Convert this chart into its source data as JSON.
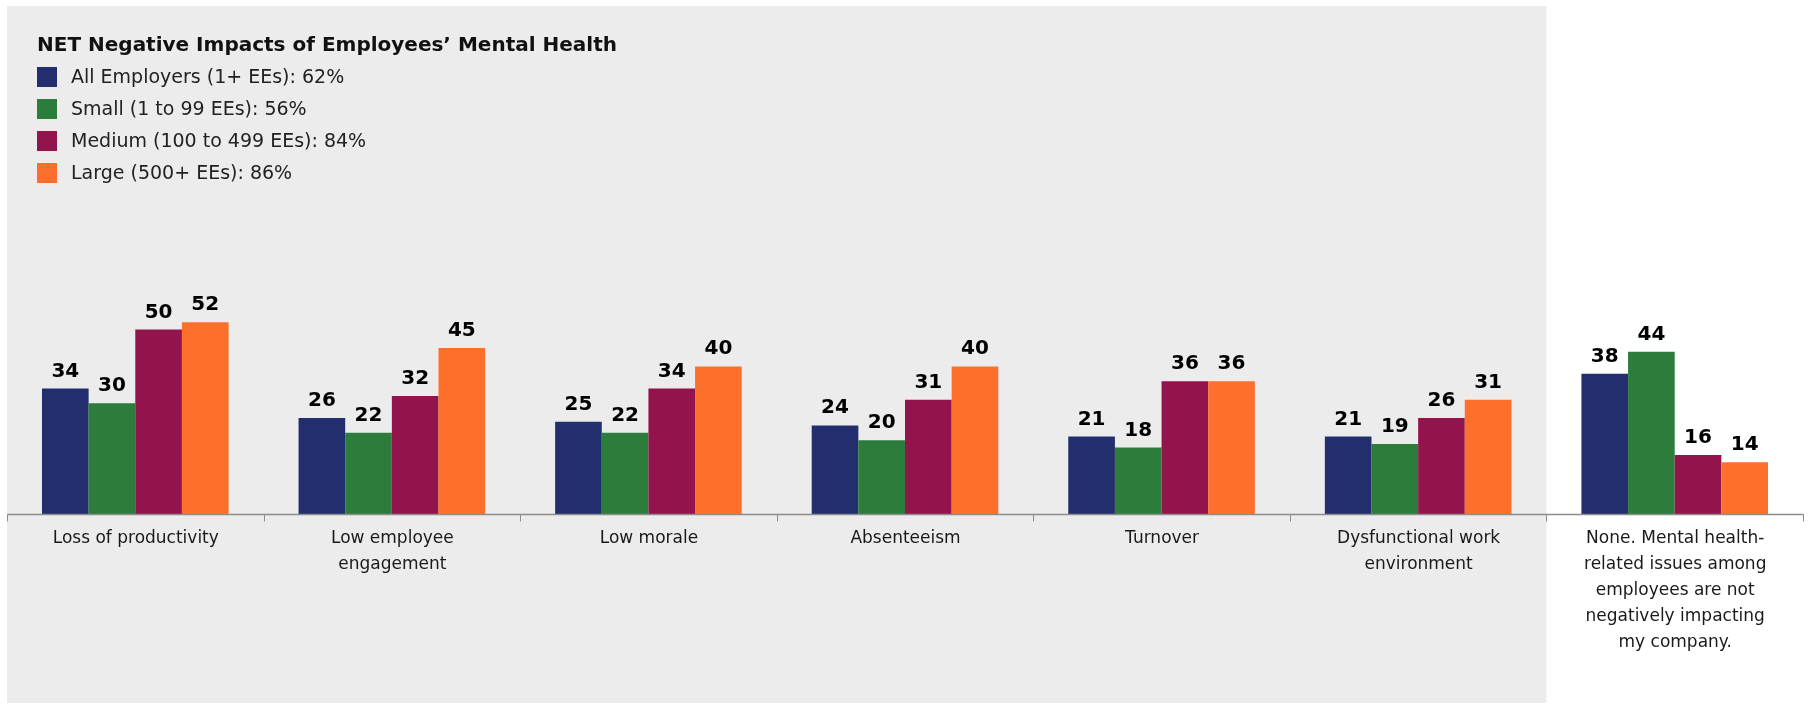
{
  "chart_data": {
    "type": "bar",
    "legend_title": "NET Negative Impacts of Employees’ Mental Health",
    "legend": "top left",
    "categories": [
      "Loss of productivity",
      "Low employee engagement",
      "Low morale",
      "Absenteeism",
      "Turnover",
      "Dysfunctional work environment",
      "None. Mental health-related issues among employees are not negatively impacting my company."
    ],
    "series": [
      {
        "name": "All Employers (1+ EEs): 62%",
        "color": "#222e6e",
        "values": [
          34,
          26,
          25,
          24,
          21,
          21,
          38
        ]
      },
      {
        "name": "Small (1 to 99 EEs): 56%",
        "color": "#2c7c3b",
        "values": [
          30,
          22,
          22,
          20,
          18,
          19,
          44
        ]
      },
      {
        "name": "Medium (100 to 499 EEs): 84%",
        "color": "#93134c",
        "values": [
          50,
          32,
          34,
          31,
          36,
          26,
          16
        ]
      },
      {
        "name": "Large (500+ EEs): 86%",
        "color": "#fe6f2c",
        "values": [
          52,
          45,
          40,
          40,
          36,
          31,
          14
        ]
      }
    ],
    "ylim": [
      0,
      138
    ],
    "tick_labels": "x",
    "data_labels": true,
    "bands": [
      {
        "axis": "x",
        "from": "Loss of productivity",
        "to": "Dysfunctional work environment",
        "color": "#ececec"
      }
    ]
  }
}
